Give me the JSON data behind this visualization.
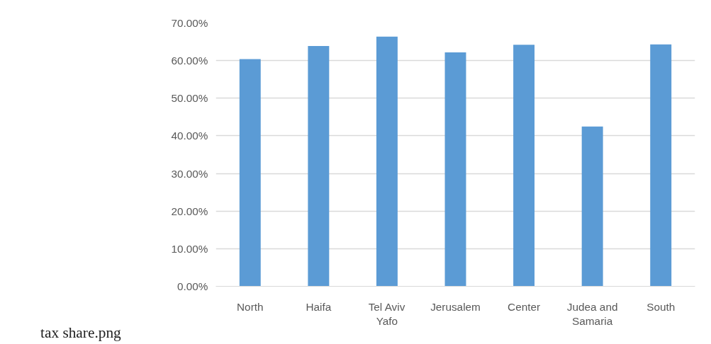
{
  "chart_data": {
    "type": "bar",
    "categories": [
      "North",
      "Haifa",
      "Tel Aviv Yafo",
      "Jerusalem",
      "Center",
      "Judea and Samaria",
      "South"
    ],
    "values": [
      60.4,
      63.9,
      66.4,
      62.2,
      64.2,
      42.5,
      64.3
    ],
    "color": "#5b9bd5",
    "ylim": [
      0,
      70
    ],
    "yticks": [
      {
        "value": 0,
        "label": "0.00%"
      },
      {
        "value": 10,
        "label": "10.00%"
      },
      {
        "value": 20,
        "label": "20.00%"
      },
      {
        "value": 30,
        "label": "30.00%"
      },
      {
        "value": 40,
        "label": "40.00%"
      },
      {
        "value": 50,
        "label": "50.00%"
      },
      {
        "value": 60,
        "label": "60.00%"
      },
      {
        "value": 70,
        "label": "70.00%"
      }
    ],
    "grid": "y",
    "annotations": [
      "tax share.png"
    ]
  }
}
